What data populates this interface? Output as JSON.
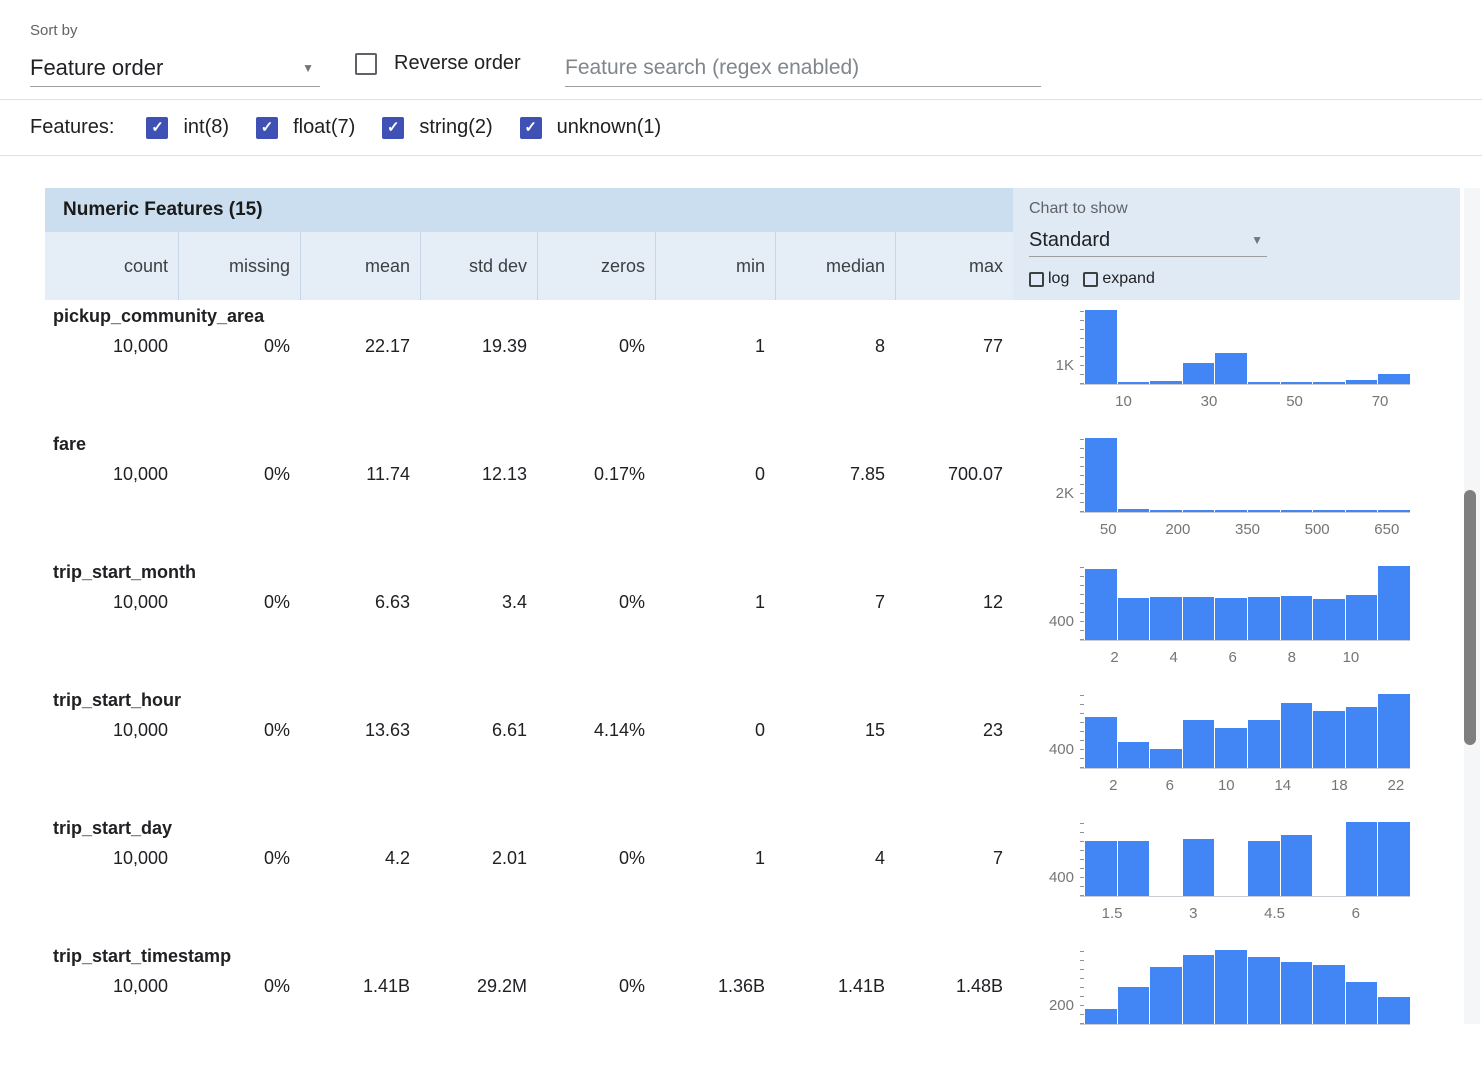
{
  "toolbar": {
    "sort_by_label": "Sort by",
    "sort_by_value": "Feature order",
    "reverse_order_label": "Reverse order",
    "reverse_order_checked": false,
    "search_placeholder": "Feature search (regex enabled)",
    "search_value": ""
  },
  "features_filter": {
    "label": "Features:",
    "items": [
      {
        "label": "int(8)",
        "checked": true
      },
      {
        "label": "float(7)",
        "checked": true
      },
      {
        "label": "string(2)",
        "checked": true
      },
      {
        "label": "unknown(1)",
        "checked": true
      }
    ]
  },
  "table": {
    "title": "Numeric Features (15)",
    "columns": [
      "count",
      "missing",
      "mean",
      "std dev",
      "zeros",
      "min",
      "median",
      "max"
    ],
    "chart_controls": {
      "label": "Chart to show",
      "selected": "Standard",
      "log_label": "log",
      "log_checked": false,
      "expand_label": "expand",
      "expand_checked": false
    },
    "rows": [
      {
        "name": "pickup_community_area",
        "values": [
          "10,000",
          "0%",
          "22.17",
          "19.39",
          "0%",
          "1",
          "8",
          "77"
        ]
      },
      {
        "name": "fare",
        "values": [
          "10,000",
          "0%",
          "11.74",
          "12.13",
          "0.17%",
          "0",
          "7.85",
          "700.07"
        ]
      },
      {
        "name": "trip_start_month",
        "values": [
          "10,000",
          "0%",
          "6.63",
          "3.4",
          "0%",
          "1",
          "7",
          "12"
        ]
      },
      {
        "name": "trip_start_hour",
        "values": [
          "10,000",
          "0%",
          "13.63",
          "6.61",
          "4.14%",
          "0",
          "15",
          "23"
        ]
      },
      {
        "name": "trip_start_day",
        "values": [
          "10,000",
          "0%",
          "4.2",
          "2.01",
          "0%",
          "1",
          "4",
          "7"
        ]
      },
      {
        "name": "trip_start_timestamp",
        "values": [
          "10,000",
          "0%",
          "1.41B",
          "29.2M",
          "0%",
          "1.36B",
          "1.41B",
          "1.48B"
        ]
      }
    ]
  },
  "colors": {
    "accent": "#3f51b5",
    "bar": "#4285f4",
    "header_band": "#cbdeef",
    "subheader": "#e5eef7",
    "panel": "#dfeaf5"
  },
  "chart_data": [
    {
      "type": "bar",
      "feature": "pickup_community_area",
      "xlim": [
        1,
        77
      ],
      "x_ticks": [
        10,
        30,
        50,
        70
      ],
      "y_tick_label": "1K",
      "values": [
        4500,
        125,
        190,
        1250,
        1875,
        125,
        60,
        60,
        250,
        625
      ]
    },
    {
      "type": "bar",
      "feature": "fare",
      "xlim": [
        0,
        700
      ],
      "x_ticks": [
        50,
        200,
        350,
        500,
        650
      ],
      "y_tick_label": "2K",
      "values": [
        8600,
        400,
        250,
        180,
        130,
        110,
        90,
        80,
        70,
        90
      ]
    },
    {
      "type": "bar",
      "feature": "trip_start_month",
      "xlim": [
        1,
        12
      ],
      "x_ticks": [
        2,
        4,
        6,
        8,
        10
      ],
      "y_tick_label": "400",
      "values": [
        1350,
        800,
        820,
        810,
        800,
        815,
        840,
        780,
        860,
        1400
      ]
    },
    {
      "type": "bar",
      "feature": "trip_start_hour",
      "xlim": [
        0,
        23
      ],
      "x_ticks": [
        2,
        6,
        10,
        14,
        18,
        22
      ],
      "y_tick_label": "400",
      "values": [
        900,
        450,
        330,
        850,
        700,
        850,
        1150,
        1000,
        1080,
        1300
      ]
    },
    {
      "type": "bar",
      "feature": "trip_start_day",
      "xlim": [
        1,
        7
      ],
      "x_ticks": [
        1.5,
        3,
        4.5,
        6
      ],
      "y_tick_label": "400",
      "values": [
        1300,
        1300,
        0,
        1350,
        0,
        1300,
        1450,
        0,
        1750,
        1750
      ]
    },
    {
      "type": "bar",
      "feature": "trip_start_timestamp",
      "xlim": [
        1360000000,
        1480000000
      ],
      "x_ticks": [],
      "y_tick_label": "200",
      "values": [
        300,
        750,
        1150,
        1400,
        1500,
        1350,
        1250,
        1200,
        850,
        550
      ]
    }
  ]
}
